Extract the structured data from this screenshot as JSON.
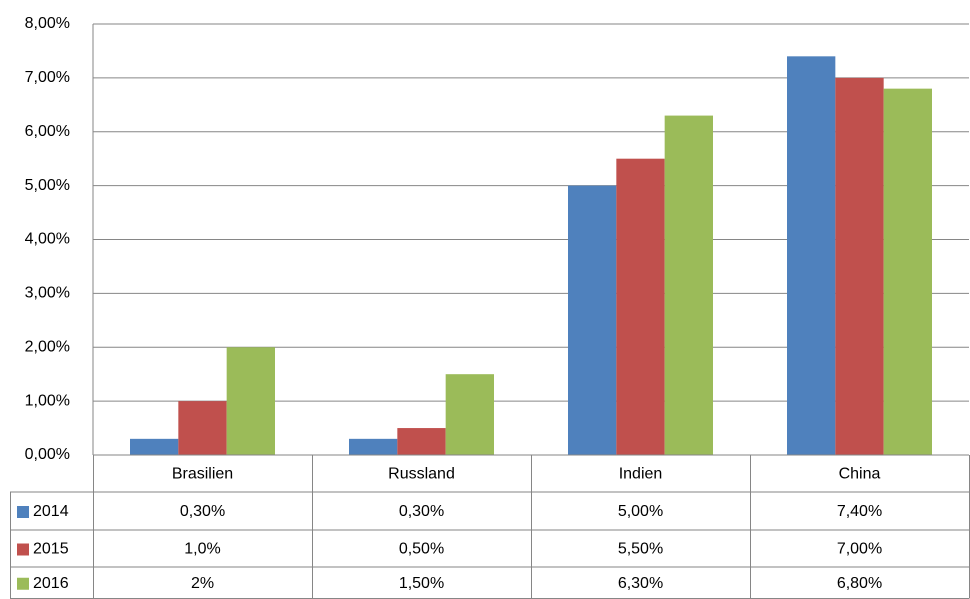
{
  "chart_data": {
    "type": "bar",
    "categories": [
      "Brasilien",
      "Russland",
      "Indien",
      "China"
    ],
    "series": [
      {
        "name": "2014",
        "color": "#4f81bd",
        "values": [
          0.3,
          0.3,
          5.0,
          7.4
        ],
        "value_labels": [
          "0,30%",
          "0,30%",
          "5,00%",
          "7,40%"
        ]
      },
      {
        "name": "2015",
        "color": "#c0504d",
        "values": [
          1.0,
          0.5,
          5.5,
          7.0
        ],
        "value_labels": [
          "1,0%",
          "0,50%",
          "5,50%",
          "7,00%"
        ]
      },
      {
        "name": "2016",
        "color": "#9bbb59",
        "values": [
          2,
          1.5,
          6.3,
          6.8
        ],
        "value_labels": [
          "2%",
          "1,50%",
          "6,30%",
          "6,80%"
        ]
      }
    ],
    "ylim": [
      0,
      8
    ],
    "yticks": [
      {
        "value": 0,
        "label": "0,00%"
      },
      {
        "value": 1,
        "label": "1,00%"
      },
      {
        "value": 2,
        "label": "2,00%"
      },
      {
        "value": 3,
        "label": "3,00%"
      },
      {
        "value": 4,
        "label": "4,00%"
      },
      {
        "value": 5,
        "label": "5,00%"
      },
      {
        "value": 6,
        "label": "6,00%"
      },
      {
        "value": 7,
        "label": "7,00%"
      },
      {
        "value": 8,
        "label": "8,00%"
      }
    ],
    "grid": true
  }
}
